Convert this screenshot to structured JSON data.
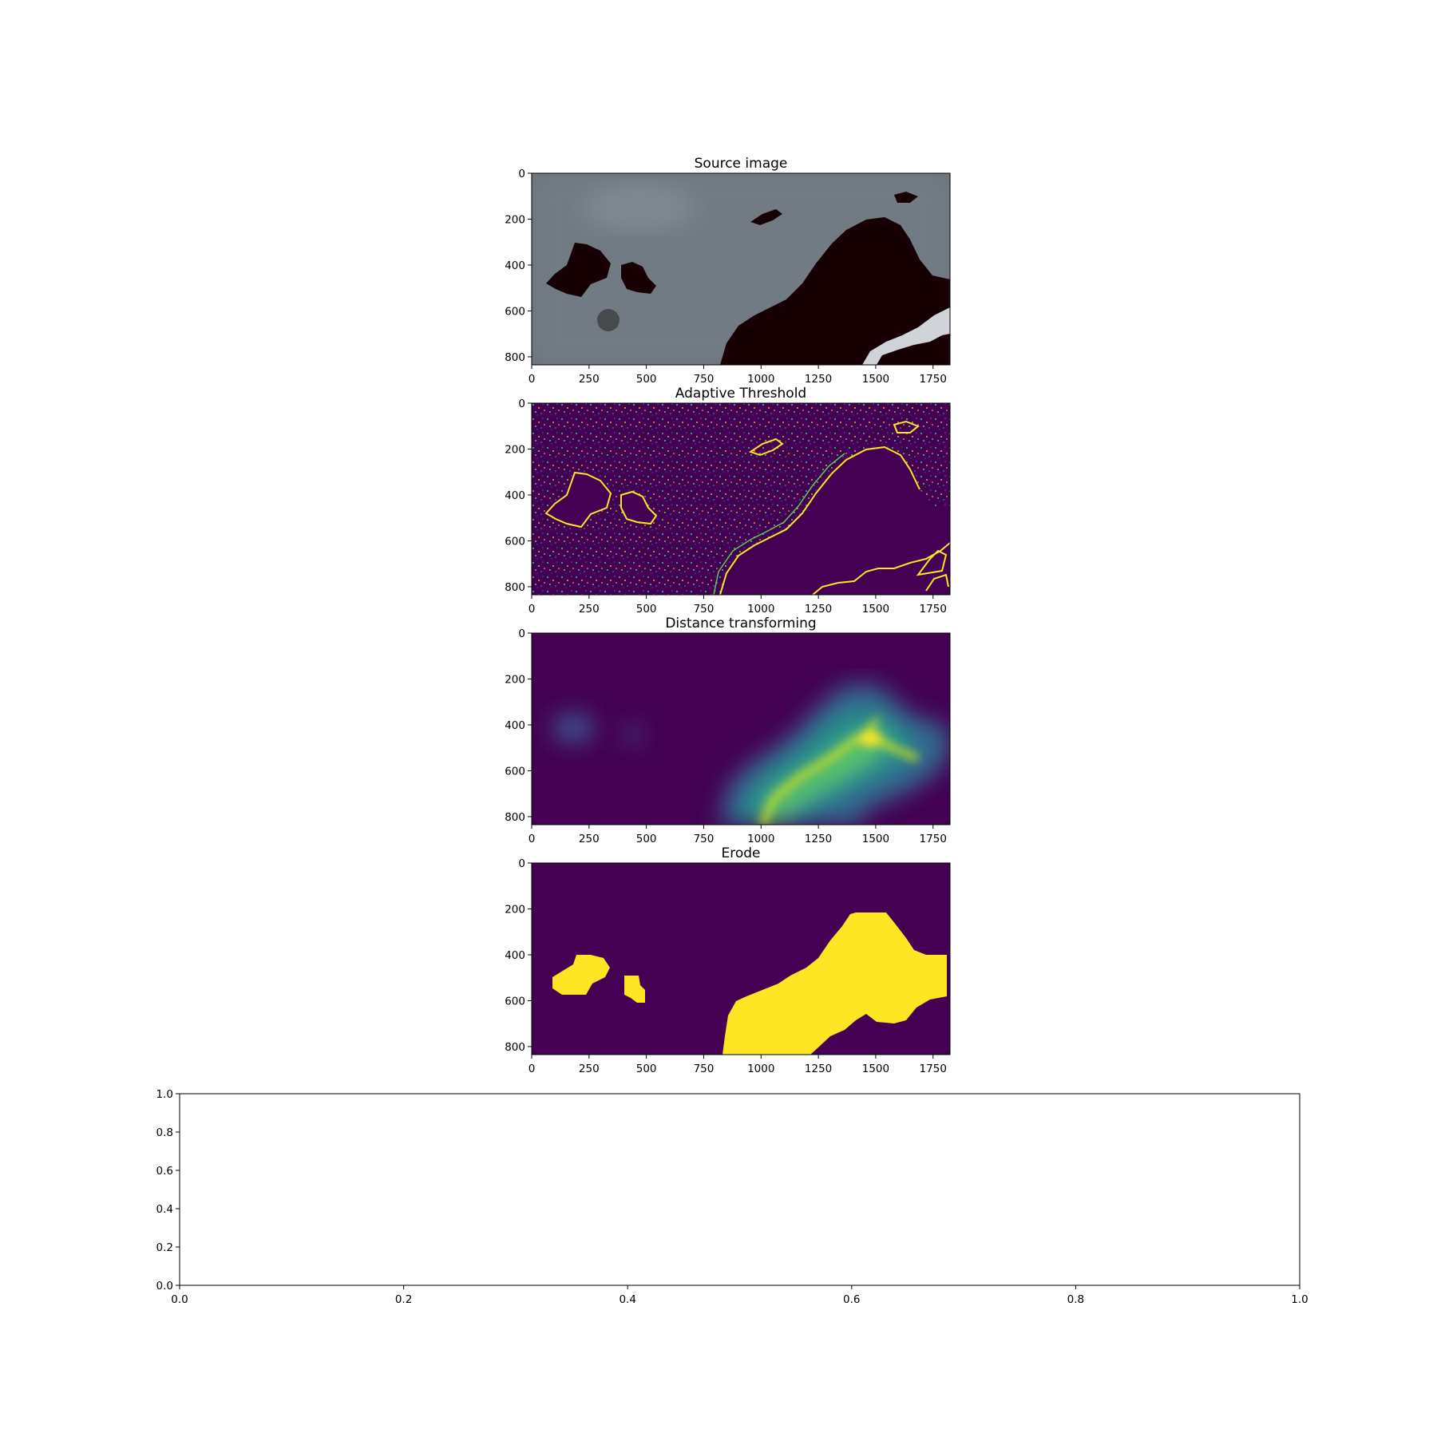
{
  "figure": {
    "background": "#ffffff"
  },
  "chart_data": [
    {
      "type": "heatmap",
      "title": "Source image",
      "image": "satellite-water",
      "xticks": [
        0,
        250,
        500,
        750,
        1000,
        1250,
        1500,
        1750
      ],
      "yticks": [
        0,
        200,
        400,
        600,
        800
      ],
      "xlim": [
        0,
        1824
      ],
      "ylim": [
        835,
        0
      ],
      "colors": {
        "land": "#6b747c",
        "water": "#160004",
        "ice": "#d0d4d8"
      }
    },
    {
      "type": "heatmap",
      "title": "Adaptive Threshold",
      "image": "threshold-edges",
      "colormap": "viridis",
      "xticks": [
        0,
        250,
        500,
        750,
        1000,
        1250,
        1500,
        1750
      ],
      "yticks": [
        0,
        200,
        400,
        600,
        800
      ],
      "xlim": [
        0,
        1824
      ],
      "ylim": [
        835,
        0
      ],
      "colors": {
        "low": "#440154",
        "high": "#fde725",
        "mid": "#21918c"
      }
    },
    {
      "type": "heatmap",
      "title": "Distance transforming",
      "image": "distance-map",
      "colormap": "viridis",
      "xticks": [
        0,
        250,
        500,
        750,
        1000,
        1250,
        1500,
        1750
      ],
      "yticks": [
        0,
        200,
        400,
        600,
        800
      ],
      "xlim": [
        0,
        1824
      ],
      "ylim": [
        835,
        0
      ],
      "colors": {
        "low": "#440154",
        "high": "#fde725"
      }
    },
    {
      "type": "heatmap",
      "title": "Erode",
      "image": "eroded-mask",
      "colormap": "viridis",
      "xticks": [
        0,
        250,
        500,
        750,
        1000,
        1250,
        1500,
        1750
      ],
      "yticks": [
        0,
        200,
        400,
        600,
        800
      ],
      "xlim": [
        0,
        1824
      ],
      "ylim": [
        835,
        0
      ],
      "colors": {
        "low": "#440154",
        "high": "#fde725"
      }
    },
    {
      "type": "line",
      "title": "",
      "series": [],
      "xticks": [
        "0.0",
        "0.2",
        "0.4",
        "0.6",
        "0.8",
        "1.0"
      ],
      "yticks": [
        "0.0",
        "0.2",
        "0.4",
        "0.6",
        "0.8",
        "1.0"
      ],
      "xlim": [
        0,
        1
      ],
      "ylim": [
        0,
        1
      ]
    }
  ]
}
